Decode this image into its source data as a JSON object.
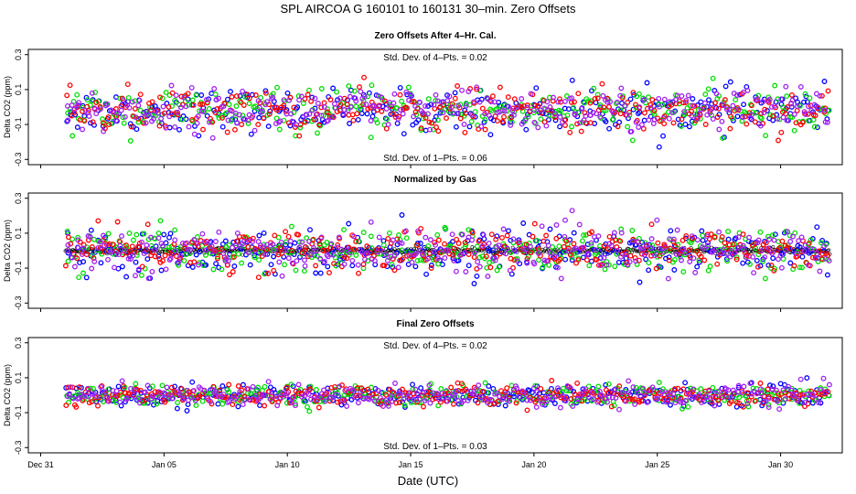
{
  "chart_data": {
    "type": "scatter",
    "title": "SPL   AIRCOA G   160101 to 160131   30–min. Zero Offsets",
    "xlabel": "Date (UTC)",
    "x_range_days": [
      -0.5,
      32.5
    ],
    "x_ticks": [
      {
        "day": 0,
        "label": "Dec 31"
      },
      {
        "day": 5,
        "label": "Jan 05"
      },
      {
        "day": 10,
        "label": "Jan 10"
      },
      {
        "day": 15,
        "label": "Jan 15"
      },
      {
        "day": 20,
        "label": "Jan 20"
      },
      {
        "day": 25,
        "label": "Jan 25"
      },
      {
        "day": 30,
        "label": "Jan 30"
      }
    ],
    "data_span_days": [
      1.0,
      32.0
    ],
    "series_colors": [
      {
        "name": "gas-1",
        "color": "#0000ff"
      },
      {
        "name": "gas-2",
        "color": "#00dd00"
      },
      {
        "name": "gas-3",
        "color": "#ff0000"
      },
      {
        "name": "gas-4",
        "color": "#a020f0"
      }
    ],
    "normalized_color": "#000000",
    "panels": [
      {
        "title": "Zero Offsets After 4–Hr. Cal.",
        "ylabel": "Delta CO2 (ppm)",
        "ylim": [
          -0.33,
          0.33
        ],
        "yticks": [
          0.3,
          0.1,
          -0.1,
          -0.3
        ],
        "ytick_labels": [
          "0.3",
          "0.1",
          "-0.1",
          "-0.3"
        ],
        "ann_top": "Std. Dev. of 4–Pts. =  0.02",
        "ann_bottom": "Std. Dev. of 1–Pts. =  0.06",
        "spread_sd": 0.06,
        "center": -0.02,
        "show_black": false
      },
      {
        "title": "Normalized by Gas",
        "ylabel": "Delta CO2 (ppm)",
        "ylim": [
          -0.33,
          0.33
        ],
        "yticks": [
          0.3,
          0.1,
          -0.1,
          -0.3
        ],
        "ytick_labels": [
          "0.3",
          "0.1",
          "-0.1",
          "-0.3"
        ],
        "ann_top": "",
        "ann_bottom": "",
        "spread_sd": 0.06,
        "center": 0.0,
        "show_black": true
      },
      {
        "title": "Final Zero Offsets",
        "ylabel": "Delta CO2 (ppm)",
        "ylim": [
          -0.33,
          0.33
        ],
        "yticks": [
          0.3,
          0.1,
          -0.1,
          -0.3
        ],
        "ytick_labels": [
          "0.3",
          "0.1",
          "-0.1",
          "-0.3"
        ],
        "ann_top": "Std. Dev. of 4–Pts. =  0.02",
        "ann_bottom": "Std. Dev. of 1–Pts. =  0.03",
        "spread_sd": 0.03,
        "center": 0.0,
        "show_black": false
      }
    ]
  }
}
